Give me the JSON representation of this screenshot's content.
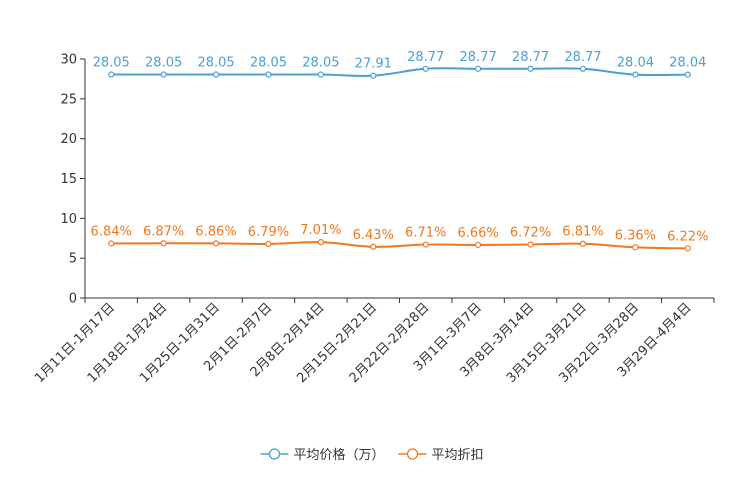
{
  "chart_data": {
    "type": "line",
    "categories": [
      "1月11日-1月17日",
      "1月18日-1月24日",
      "1月25日-1月31日",
      "2月1日-2月7日",
      "2月8日-2月14日",
      "2月15日-2月21日",
      "2月22日-2月28日",
      "3月1日-3月7日",
      "3月8日-3月14日",
      "3月15日-3月21日",
      "3月22日-3月28日",
      "3月29日-4月4日"
    ],
    "series": [
      {
        "name": "平均价格（万）",
        "color": "#4aa0d3",
        "values": [
          28.05,
          28.05,
          28.05,
          28.05,
          28.05,
          27.91,
          28.77,
          28.77,
          28.77,
          28.77,
          28.04,
          28.04
        ],
        "labels": [
          "28.05",
          "28.05",
          "28.05",
          "28.05",
          "28.05",
          "27.91",
          "28.77",
          "28.77",
          "28.77",
          "28.77",
          "28.04",
          "28.04"
        ]
      },
      {
        "name": "平均折扣",
        "color": "#f0781e",
        "values": [
          6.84,
          6.87,
          6.86,
          6.79,
          7.01,
          6.43,
          6.71,
          6.66,
          6.72,
          6.81,
          6.36,
          6.22
        ],
        "labels": [
          "6.84%",
          "6.87%",
          "6.86%",
          "6.79%",
          "7.01%",
          "6.43%",
          "6.71%",
          "6.66%",
          "6.72%",
          "6.81%",
          "6.36%",
          "6.22%"
        ]
      }
    ],
    "y_ticks": [
      "0",
      "5",
      "10",
      "15",
      "20",
      "25",
      "30"
    ],
    "ylim": [
      0,
      30
    ],
    "title": "",
    "xlabel": "",
    "ylabel": "",
    "grid": false,
    "legend_position": "bottom-center"
  }
}
